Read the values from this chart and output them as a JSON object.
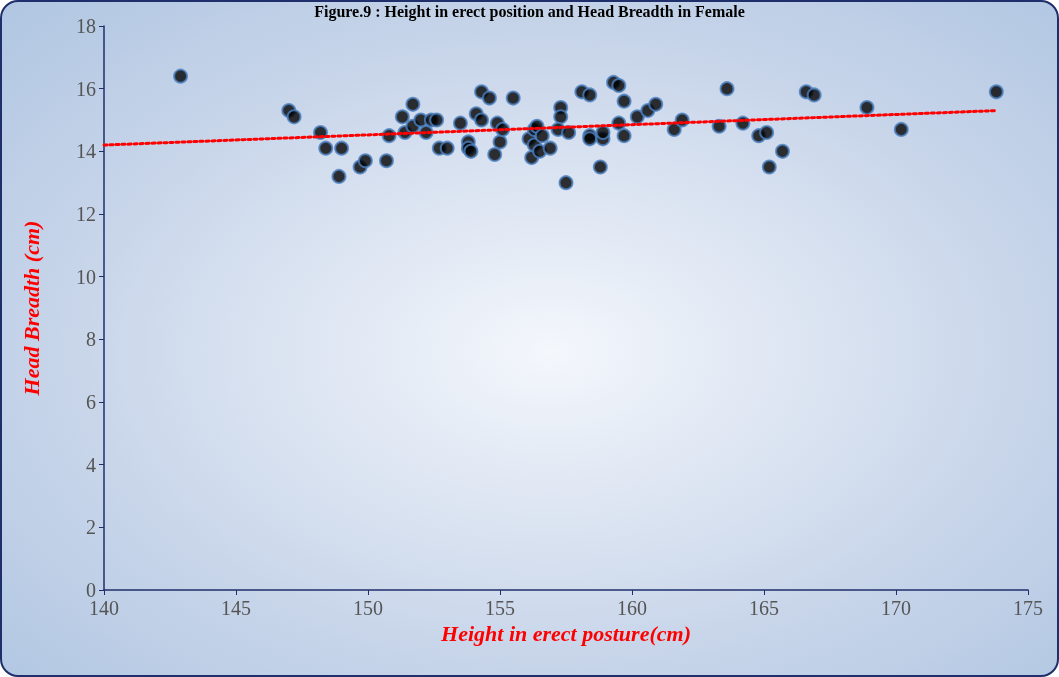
{
  "chart_data": {
    "type": "scatter",
    "title": "Figure.9 : Height in erect position and Head Breadth in Female",
    "xlabel": "Height in erect posture(cm)",
    "ylabel": "Head Breadth (cm)",
    "xlim": [
      140,
      175
    ],
    "xticks": [
      140,
      145,
      150,
      155,
      160,
      165,
      170,
      175
    ],
    "ylim": [
      0,
      18
    ],
    "yticks": [
      0,
      2,
      4,
      6,
      8,
      10,
      12,
      14,
      16,
      18
    ],
    "grid": false,
    "marker": "circle",
    "series": [
      {
        "type": "scatter",
        "color": "#000000",
        "x": [
          142.9,
          147.0,
          147.2,
          148.2,
          148.4,
          149.0,
          148.9,
          149.7,
          149.9,
          150.7,
          150.8,
          151.3,
          151.7,
          151.4,
          151.7,
          152.0,
          152.2,
          152.4,
          152.6,
          152.7,
          153.0,
          153.5,
          153.8,
          153.8,
          153.9,
          154.1,
          154.3,
          154.3,
          154.6,
          154.8,
          154.9,
          155.0,
          155.1,
          155.5,
          156.1,
          156.2,
          156.3,
          156.3,
          156.4,
          156.5,
          156.6,
          156.9,
          157.3,
          157.3,
          157.5,
          157.2,
          157.6,
          158.1,
          158.4,
          158.4,
          158.4,
          158.8,
          158.9,
          158.9,
          159.3,
          159.5,
          159.5,
          159.7,
          159.7,
          160.2,
          160.6,
          160.9,
          161.6,
          161.9,
          163.3,
          163.6,
          164.2,
          164.8,
          165.1,
          165.2,
          165.7,
          166.6,
          166.9,
          168.9,
          170.2,
          173.8
        ],
        "values": [
          16.4,
          15.3,
          15.1,
          14.6,
          14.1,
          14.1,
          13.2,
          13.5,
          13.7,
          13.7,
          14.5,
          15.1,
          15.5,
          14.6,
          14.8,
          15.0,
          14.6,
          15.0,
          15.0,
          14.1,
          14.1,
          14.9,
          14.3,
          14.1,
          14.0,
          15.2,
          15.9,
          15.0,
          15.7,
          13.9,
          14.9,
          14.3,
          14.7,
          15.7,
          14.4,
          13.8,
          14.7,
          14.2,
          14.8,
          14.0,
          14.5,
          14.1,
          15.4,
          15.1,
          13.0,
          14.7,
          14.6,
          15.9,
          15.8,
          14.5,
          14.4,
          13.5,
          14.4,
          14.6,
          16.2,
          16.1,
          14.9,
          15.6,
          14.5,
          15.1,
          15.3,
          15.5,
          14.7,
          15.0,
          14.8,
          16.0,
          14.9,
          14.5,
          14.6,
          13.5,
          14.0,
          15.9,
          15.8,
          15.4,
          14.7,
          15.9
        ]
      },
      {
        "type": "line",
        "color": "#ff0000",
        "line_style": "dotted",
        "marker": "none",
        "x": [
          140,
          173.8
        ],
        "values": [
          14.2,
          15.3
        ]
      }
    ]
  }
}
